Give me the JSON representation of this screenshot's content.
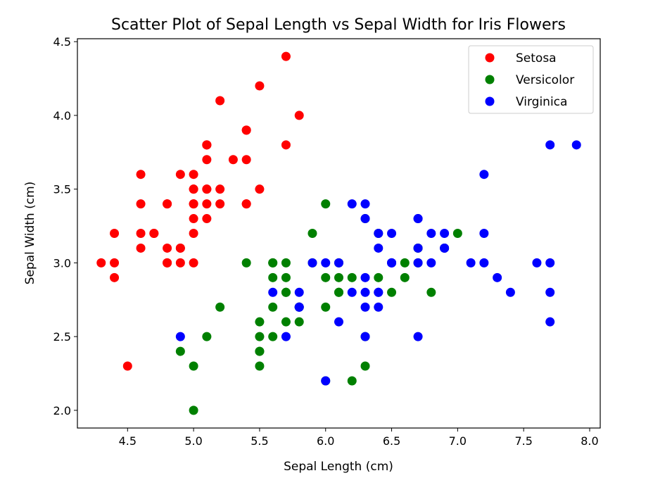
{
  "chart_data": {
    "type": "scatter",
    "title": "Scatter Plot of Sepal Length vs Sepal Width for Iris Flowers",
    "xlabel": "Sepal Length (cm)",
    "ylabel": "Sepal Width (cm)",
    "xlim": [
      4.12,
      8.08
    ],
    "ylim": [
      1.88,
      4.52
    ],
    "xticks": [
      4.5,
      5.0,
      5.5,
      6.0,
      6.5,
      7.0,
      7.5,
      8.0
    ],
    "yticks": [
      2.0,
      2.5,
      3.0,
      3.5,
      4.0,
      4.5
    ],
    "grid": false,
    "legend_position": "top-right",
    "series": [
      {
        "name": "Setosa",
        "color": "#ff0000",
        "points": [
          [
            5.1,
            3.5
          ],
          [
            4.9,
            3.0
          ],
          [
            4.7,
            3.2
          ],
          [
            4.6,
            3.1
          ],
          [
            5.0,
            3.6
          ],
          [
            5.4,
            3.9
          ],
          [
            4.6,
            3.4
          ],
          [
            5.0,
            3.4
          ],
          [
            4.4,
            2.9
          ],
          [
            4.9,
            3.1
          ],
          [
            5.4,
            3.7
          ],
          [
            4.8,
            3.4
          ],
          [
            4.8,
            3.0
          ],
          [
            4.3,
            3.0
          ],
          [
            5.8,
            4.0
          ],
          [
            5.7,
            4.4
          ],
          [
            5.4,
            3.9
          ],
          [
            5.1,
            3.5
          ],
          [
            5.7,
            3.8
          ],
          [
            5.1,
            3.8
          ],
          [
            5.4,
            3.4
          ],
          [
            5.1,
            3.7
          ],
          [
            4.6,
            3.6
          ],
          [
            5.1,
            3.3
          ],
          [
            4.8,
            3.4
          ],
          [
            5.0,
            3.0
          ],
          [
            5.0,
            3.4
          ],
          [
            5.2,
            3.5
          ],
          [
            5.2,
            3.4
          ],
          [
            4.7,
            3.2
          ],
          [
            4.8,
            3.1
          ],
          [
            5.4,
            3.4
          ],
          [
            5.2,
            4.1
          ],
          [
            5.5,
            4.2
          ],
          [
            4.9,
            3.1
          ],
          [
            5.0,
            3.2
          ],
          [
            5.5,
            3.5
          ],
          [
            4.9,
            3.6
          ],
          [
            4.4,
            3.0
          ],
          [
            5.1,
            3.4
          ],
          [
            5.0,
            3.5
          ],
          [
            4.5,
            2.3
          ],
          [
            4.4,
            3.2
          ],
          [
            5.0,
            3.5
          ],
          [
            5.1,
            3.8
          ],
          [
            4.8,
            3.0
          ],
          [
            5.1,
            3.8
          ],
          [
            4.6,
            3.2
          ],
          [
            5.3,
            3.7
          ],
          [
            5.0,
            3.3
          ]
        ]
      },
      {
        "name": "Versicolor",
        "color": "#008000",
        "points": [
          [
            7.0,
            3.2
          ],
          [
            6.4,
            3.2
          ],
          [
            6.9,
            3.1
          ],
          [
            5.5,
            2.3
          ],
          [
            6.5,
            2.8
          ],
          [
            5.7,
            2.8
          ],
          [
            6.3,
            3.3
          ],
          [
            4.9,
            2.4
          ],
          [
            6.6,
            2.9
          ],
          [
            5.2,
            2.7
          ],
          [
            5.0,
            2.0
          ],
          [
            5.9,
            3.0
          ],
          [
            6.0,
            2.2
          ],
          [
            6.1,
            2.9
          ],
          [
            5.6,
            2.9
          ],
          [
            6.7,
            3.1
          ],
          [
            5.6,
            3.0
          ],
          [
            5.8,
            2.7
          ],
          [
            6.2,
            2.2
          ],
          [
            5.6,
            2.5
          ],
          [
            5.9,
            3.2
          ],
          [
            6.1,
            2.8
          ],
          [
            6.3,
            2.5
          ],
          [
            6.1,
            2.8
          ],
          [
            6.4,
            2.9
          ],
          [
            6.6,
            3.0
          ],
          [
            6.8,
            2.8
          ],
          [
            6.7,
            3.0
          ],
          [
            6.0,
            2.9
          ],
          [
            5.7,
            2.6
          ],
          [
            5.5,
            2.4
          ],
          [
            5.5,
            2.4
          ],
          [
            5.8,
            2.7
          ],
          [
            6.0,
            2.7
          ],
          [
            5.4,
            3.0
          ],
          [
            6.0,
            3.4
          ],
          [
            6.7,
            3.1
          ],
          [
            6.3,
            2.3
          ],
          [
            5.6,
            3.0
          ],
          [
            5.5,
            2.5
          ],
          [
            5.5,
            2.6
          ],
          [
            6.1,
            3.0
          ],
          [
            5.8,
            2.6
          ],
          [
            5.0,
            2.3
          ],
          [
            5.6,
            2.7
          ],
          [
            5.7,
            3.0
          ],
          [
            5.7,
            2.9
          ],
          [
            6.2,
            2.9
          ],
          [
            5.1,
            2.5
          ],
          [
            5.7,
            2.8
          ]
        ]
      },
      {
        "name": "Virginica",
        "color": "#0000ff",
        "points": [
          [
            6.3,
            3.3
          ],
          [
            5.8,
            2.7
          ],
          [
            7.1,
            3.0
          ],
          [
            6.3,
            2.9
          ],
          [
            6.5,
            3.0
          ],
          [
            7.6,
            3.0
          ],
          [
            4.9,
            2.5
          ],
          [
            7.3,
            2.9
          ],
          [
            6.7,
            2.5
          ],
          [
            7.2,
            3.6
          ],
          [
            6.5,
            3.2
          ],
          [
            6.4,
            2.7
          ],
          [
            6.8,
            3.0
          ],
          [
            5.7,
            2.5
          ],
          [
            5.8,
            2.8
          ],
          [
            6.4,
            3.2
          ],
          [
            6.5,
            3.0
          ],
          [
            7.7,
            3.8
          ],
          [
            7.7,
            2.6
          ],
          [
            6.0,
            2.2
          ],
          [
            6.9,
            3.2
          ],
          [
            5.6,
            2.8
          ],
          [
            7.7,
            2.8
          ],
          [
            6.3,
            2.7
          ],
          [
            6.7,
            3.3
          ],
          [
            7.2,
            3.2
          ],
          [
            6.2,
            2.8
          ],
          [
            6.1,
            3.0
          ],
          [
            6.4,
            2.8
          ],
          [
            7.2,
            3.0
          ],
          [
            7.4,
            2.8
          ],
          [
            7.9,
            3.8
          ],
          [
            6.4,
            2.8
          ],
          [
            6.3,
            2.8
          ],
          [
            6.1,
            2.6
          ],
          [
            7.7,
            3.0
          ],
          [
            6.3,
            3.4
          ],
          [
            6.4,
            3.1
          ],
          [
            6.0,
            3.0
          ],
          [
            6.9,
            3.1
          ],
          [
            6.7,
            3.1
          ],
          [
            6.9,
            3.1
          ],
          [
            5.8,
            2.7
          ],
          [
            6.8,
            3.2
          ],
          [
            6.7,
            3.3
          ],
          [
            6.7,
            3.0
          ],
          [
            6.3,
            2.5
          ],
          [
            6.5,
            3.0
          ],
          [
            6.2,
            3.4
          ],
          [
            5.9,
            3.0
          ]
        ]
      }
    ]
  }
}
